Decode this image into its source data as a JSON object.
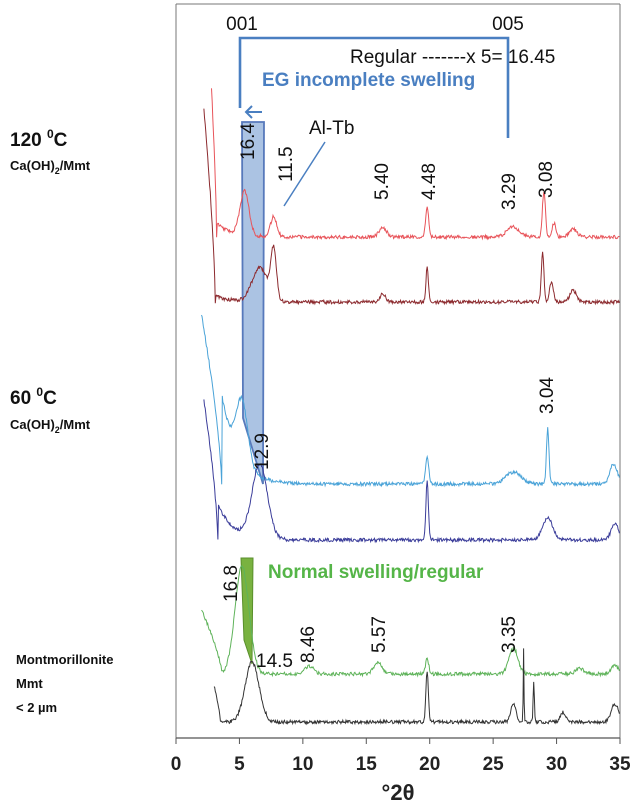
{
  "chart_data": {
    "type": "line",
    "title": "",
    "xlabel": "°2θ",
    "ylabel": "",
    "xlim": [
      0,
      35
    ],
    "xticks": [
      0,
      5,
      10,
      15,
      20,
      25,
      30,
      35
    ],
    "grid": false,
    "series": [
      {
        "key": "ca120_eg",
        "color": "#e8545a",
        "group": "120"
      },
      {
        "key": "ca120_air",
        "color": "#8c2a2e",
        "group": "120"
      },
      {
        "key": "ca60_eg",
        "color": "#4aa3d8",
        "group": "60"
      },
      {
        "key": "ca60_air",
        "color": "#3b3d9a",
        "group": "60"
      },
      {
        "key": "mmt_eg",
        "color": "#5fb35a",
        "group": "mmt"
      },
      {
        "key": "mmt_air",
        "color": "#333333",
        "group": "mmt"
      }
    ],
    "sample_labels": [
      {
        "key": "120",
        "title": "120 ",
        "superscript": "0",
        "unit": "C",
        "formula": "Ca(OH)",
        "subscript": "2",
        "suffix": "/Mmt"
      },
      {
        "key": "60",
        "title": "60 ",
        "superscript": "0",
        "unit": "C",
        "formula": "Ca(OH)",
        "subscript": "2",
        "suffix": "/Mmt"
      },
      {
        "key": "mmt",
        "lines": [
          "Montmorillonite",
          "Mmt",
          "< 2 µm"
        ]
      }
    ],
    "peak_labels": [
      {
        "text": "16.4",
        "x": 5.4,
        "rotate": true
      },
      {
        "text": "11.5",
        "x": 7.9,
        "rotate": true
      },
      {
        "text": "5.40",
        "x": 16.3,
        "rotate": true
      },
      {
        "text": "4.48",
        "x": 19.8,
        "rotate": true
      },
      {
        "text": "3.29",
        "x": 26.8,
        "rotate": true
      },
      {
        "text": "3.08",
        "x": 29.0,
        "rotate": true
      },
      {
        "text": "3.04",
        "x": 29.3,
        "rotate": true
      },
      {
        "text": "12.9",
        "x": 7.1,
        "rotate": true
      },
      {
        "text": "16.8",
        "x": 5.2,
        "rotate": true
      },
      {
        "text": "14.5",
        "x": 6.6,
        "rotate": false
      },
      {
        "text": "8.46",
        "x": 10.5,
        "rotate": true
      },
      {
        "text": "5.57",
        "x": 15.9,
        "rotate": true
      },
      {
        "text": "3.35",
        "x": 26.6,
        "rotate": true
      }
    ],
    "annotations": {
      "order_001": "001",
      "order_005": "005",
      "regular_text": "Regular -------x 5= 16.45",
      "eg_text": "EG incomplete swelling",
      "altb_text": "Al-Tb",
      "normal_text": "Normal swelling/regular"
    }
  }
}
